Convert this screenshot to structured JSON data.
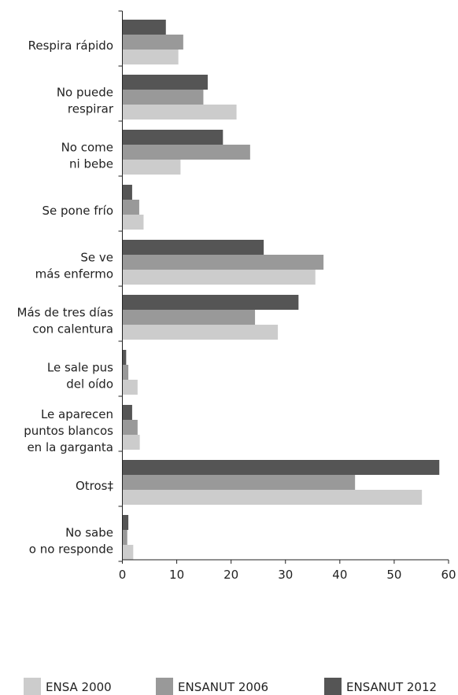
{
  "chart_data": {
    "type": "bar",
    "orientation": "horizontal",
    "categories": [
      [
        "Respira rápido"
      ],
      [
        "No puede",
        "respirar"
      ],
      [
        "No come",
        "ni bebe"
      ],
      [
        "Se pone frío"
      ],
      [
        "Se ve",
        "más enfermo"
      ],
      [
        "Más de tres días",
        "con calentura"
      ],
      [
        "Le sale pus",
        "del oído"
      ],
      [
        "Le aparecen",
        "puntos blancos",
        "en la garganta"
      ],
      [
        "Otros‡"
      ],
      [
        "No sabe",
        "o no responde"
      ]
    ],
    "series": [
      {
        "name": "ENSANUT 2012",
        "color": "#555555",
        "values": [
          8.0,
          15.7,
          18.5,
          1.8,
          26.0,
          32.4,
          0.7,
          1.8,
          58.3,
          1.1
        ]
      },
      {
        "name": "ENSANUT 2006",
        "color": "#999999",
        "values": [
          11.2,
          14.9,
          23.5,
          3.1,
          37.0,
          24.4,
          1.1,
          2.8,
          42.8,
          0.9
        ]
      },
      {
        "name": "ENSA 2000",
        "color": "#cccccc",
        "values": [
          10.3,
          21.0,
          10.7,
          3.9,
          35.5,
          28.6,
          2.8,
          3.2,
          55.1,
          2.0
        ]
      }
    ],
    "legend_order": [
      "ENSA 2000",
      "ENSANUT 2006",
      "ENSANUT 2012"
    ],
    "xlim": [
      0,
      60
    ],
    "xticks": [
      0,
      10,
      20,
      30,
      40,
      50,
      60
    ],
    "legend_position": "bottom",
    "grid": false
  }
}
